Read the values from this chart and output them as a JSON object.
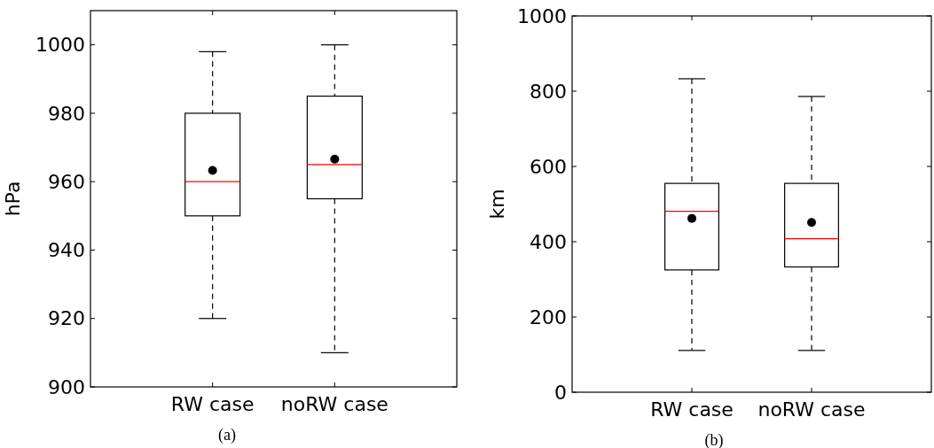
{
  "chart_data": [
    {
      "type": "box",
      "ylabel": "hPa",
      "categories": [
        "RW case",
        "noRW case"
      ],
      "ylim": [
        900,
        1010
      ],
      "yticks": [
        900,
        920,
        940,
        960,
        980,
        1000
      ],
      "annotations": [
        "(a)"
      ],
      "marker": "circle",
      "series": [
        {
          "color": "#000000",
          "boxes": [
            {
              "low": 920,
              "q1": 950,
              "median": 960,
              "q3": 980,
              "high": 998,
              "mean": 963.3
            },
            {
              "low": 910,
              "q1": 955,
              "median": 965,
              "q3": 985,
              "high": 1000,
              "mean": 966.6
            }
          ]
        }
      ]
    },
    {
      "type": "box",
      "ylabel": "km",
      "categories": [
        "RW case",
        "noRW case"
      ],
      "ylim": [
        0,
        1000
      ],
      "yticks": [
        0,
        200,
        400,
        600,
        800,
        1000
      ],
      "annotations": [
        "(b)"
      ],
      "marker": "circle",
      "series": [
        {
          "color": "#000000",
          "boxes": [
            {
              "low": 111,
              "q1": 325,
              "median": 481,
              "q3": 555,
              "high": 833,
              "mean": 462
            },
            {
              "low": 111,
              "q1": 333,
              "median": 408,
              "q3": 555,
              "high": 786,
              "mean": 451
            }
          ]
        }
      ]
    }
  ]
}
